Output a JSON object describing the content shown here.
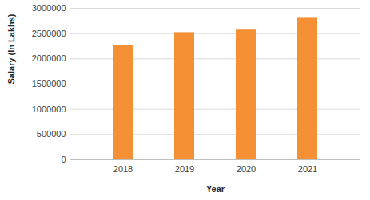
{
  "chart_data": {
    "type": "bar",
    "x_label": "Year",
    "y_label": "Salary (In Lakhs)",
    "categories": [
      "2018",
      "2019",
      "2020",
      "2021"
    ],
    "values": [
      2270000,
      2520000,
      2570000,
      2820000
    ],
    "color": "#f59035",
    "ylim": [
      0,
      3000000
    ],
    "yticks": [
      0,
      500000,
      1000000,
      1500000,
      2000000,
      2500000,
      3000000
    ],
    "grid": true
  }
}
